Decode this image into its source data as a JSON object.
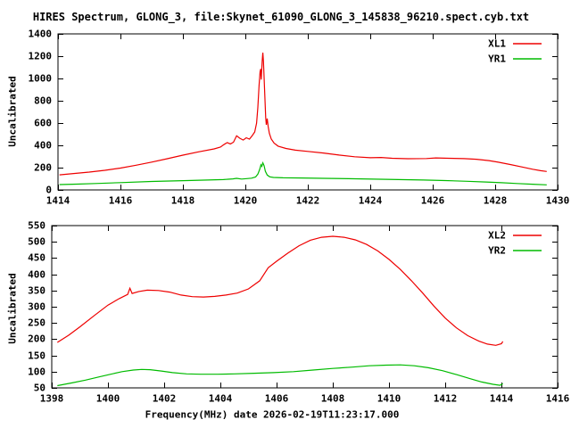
{
  "title": "HIRES Spectrum, GLONG_3, file:Skynet_61090_GLONG_3_145838_96210.spect.cyb.txt",
  "colors": {
    "background": "#ffffff",
    "axis": "#000000",
    "text": "#000000",
    "series_red": "#ee0000",
    "series_green": "#00bb00"
  },
  "chart_data": [
    {
      "type": "line",
      "title": "",
      "xlabel": "",
      "ylabel": "Uncalibrated",
      "xlim": [
        1414,
        1430
      ],
      "ylim": [
        0,
        1400
      ],
      "xticks": [
        1414,
        1416,
        1418,
        1420,
        1422,
        1424,
        1426,
        1428,
        1430
      ],
      "yticks": [
        0,
        200,
        400,
        600,
        800,
        1000,
        1200,
        1400
      ],
      "grid": false,
      "legend_position": "top-right",
      "series": [
        {
          "name": "XL1",
          "color": "#ee0000",
          "points": [
            [
              1414.05,
              135
            ],
            [
              1414.5,
              147
            ],
            [
              1415,
              160
            ],
            [
              1415.5,
              176
            ],
            [
              1416,
              196
            ],
            [
              1416.5,
              222
            ],
            [
              1417,
              250
            ],
            [
              1417.5,
              280
            ],
            [
              1418,
              312
            ],
            [
              1418.5,
              342
            ],
            [
              1419,
              368
            ],
            [
              1419.2,
              384
            ],
            [
              1419.33,
              410
            ],
            [
              1419.42,
              425
            ],
            [
              1419.52,
              413
            ],
            [
              1419.62,
              428
            ],
            [
              1419.72,
              486
            ],
            [
              1419.82,
              464
            ],
            [
              1419.93,
              447
            ],
            [
              1420.03,
              468
            ],
            [
              1420.13,
              456
            ],
            [
              1420.22,
              487
            ],
            [
              1420.3,
              520
            ],
            [
              1420.36,
              600
            ],
            [
              1420.4,
              740
            ],
            [
              1420.44,
              940
            ],
            [
              1420.47,
              1060
            ],
            [
              1420.49,
              1085
            ],
            [
              1420.51,
              990
            ],
            [
              1420.54,
              1160
            ],
            [
              1420.56,
              1232
            ],
            [
              1420.58,
              1150
            ],
            [
              1420.61,
              950
            ],
            [
              1420.63,
              790
            ],
            [
              1420.65,
              650
            ],
            [
              1420.67,
              585
            ],
            [
              1420.7,
              640
            ],
            [
              1420.73,
              568
            ],
            [
              1420.77,
              508
            ],
            [
              1420.83,
              458
            ],
            [
              1420.92,
              420
            ],
            [
              1421.05,
              393
            ],
            [
              1421.3,
              372
            ],
            [
              1421.6,
              357
            ],
            [
              1422,
              346
            ],
            [
              1422.5,
              331
            ],
            [
              1423,
              313
            ],
            [
              1423.5,
              298
            ],
            [
              1424,
              289
            ],
            [
              1424.35,
              291
            ],
            [
              1424.7,
              284
            ],
            [
              1425.2,
              280
            ],
            [
              1425.8,
              282
            ],
            [
              1426.1,
              287
            ],
            [
              1426.5,
              284
            ],
            [
              1427,
              281
            ],
            [
              1427.4,
              275
            ],
            [
              1427.8,
              263
            ],
            [
              1428.1,
              249
            ],
            [
              1428.5,
              227
            ],
            [
              1428.9,
              203
            ],
            [
              1429.2,
              186
            ],
            [
              1429.45,
              173
            ],
            [
              1429.65,
              166
            ]
          ]
        },
        {
          "name": "YR1",
          "color": "#00bb00",
          "points": [
            [
              1414.05,
              48
            ],
            [
              1414.6,
              52
            ],
            [
              1415.2,
              58
            ],
            [
              1416,
              66
            ],
            [
              1417,
              76
            ],
            [
              1418,
              83
            ],
            [
              1418.8,
              89
            ],
            [
              1419.3,
              93
            ],
            [
              1419.6,
              99
            ],
            [
              1419.72,
              104
            ],
            [
              1419.88,
              98
            ],
            [
              1420.05,
              102
            ],
            [
              1420.2,
              106
            ],
            [
              1420.33,
              116
            ],
            [
              1420.4,
              142
            ],
            [
              1420.46,
              185
            ],
            [
              1420.5,
              226
            ],
            [
              1420.53,
              212
            ],
            [
              1420.56,
              243
            ],
            [
              1420.6,
              218
            ],
            [
              1420.64,
              168
            ],
            [
              1420.7,
              134
            ],
            [
              1420.78,
              118
            ],
            [
              1420.9,
              112
            ],
            [
              1421.2,
              109
            ],
            [
              1421.8,
              107
            ],
            [
              1422.5,
              104
            ],
            [
              1423.3,
              101
            ],
            [
              1424.1,
              97
            ],
            [
              1424.9,
              93
            ],
            [
              1425.7,
              89
            ],
            [
              1426.4,
              84
            ],
            [
              1427.1,
              78
            ],
            [
              1427.7,
              71
            ],
            [
              1428.2,
              65
            ],
            [
              1428.7,
              58
            ],
            [
              1429.2,
              51
            ],
            [
              1429.65,
              46
            ]
          ]
        }
      ]
    },
    {
      "type": "line",
      "title": "",
      "xlabel": "Frequency(MHz) date 2026-02-19T11:23:17.000",
      "ylabel": "Uncalibrated",
      "xlim": [
        1398,
        1416
      ],
      "ylim": [
        50,
        550
      ],
      "xticks": [
        1398,
        1400,
        1402,
        1404,
        1406,
        1408,
        1410,
        1412,
        1414,
        1416
      ],
      "yticks": [
        50,
        100,
        150,
        200,
        250,
        300,
        350,
        400,
        450,
        500,
        550
      ],
      "grid": false,
      "legend_position": "top-right",
      "series": [
        {
          "name": "XL2",
          "color": "#ee0000",
          "points": [
            [
              1398.2,
              190
            ],
            [
              1398.6,
              212
            ],
            [
              1399,
              238
            ],
            [
              1399.5,
              272
            ],
            [
              1400,
              305
            ],
            [
              1400.4,
              325
            ],
            [
              1400.7,
              338
            ],
            [
              1400.78,
              357
            ],
            [
              1400.86,
              341
            ],
            [
              1401.1,
              347
            ],
            [
              1401.4,
              351
            ],
            [
              1401.8,
              350
            ],
            [
              1402.2,
              345
            ],
            [
              1402.6,
              336
            ],
            [
              1403,
              331
            ],
            [
              1403.4,
              330
            ],
            [
              1403.8,
              332
            ],
            [
              1404.2,
              336
            ],
            [
              1404.6,
              342
            ],
            [
              1405,
              355
            ],
            [
              1405.4,
              380
            ],
            [
              1405.7,
              420
            ],
            [
              1406,
              440
            ],
            [
              1406.4,
              465
            ],
            [
              1406.8,
              488
            ],
            [
              1407.2,
              505
            ],
            [
              1407.6,
              514
            ],
            [
              1408,
              517
            ],
            [
              1408.4,
              514
            ],
            [
              1408.8,
              506
            ],
            [
              1409.2,
              492
            ],
            [
              1409.6,
              472
            ],
            [
              1410,
              446
            ],
            [
              1410.4,
              415
            ],
            [
              1410.8,
              380
            ],
            [
              1411.2,
              342
            ],
            [
              1411.6,
              302
            ],
            [
              1412,
              265
            ],
            [
              1412.4,
              235
            ],
            [
              1412.8,
              211
            ],
            [
              1413.2,
              194
            ],
            [
              1413.5,
              185
            ],
            [
              1413.8,
              181
            ],
            [
              1414,
              186
            ],
            [
              1414.05,
              193
            ]
          ]
        },
        {
          "name": "YR2",
          "color": "#00bb00",
          "points": [
            [
              1398.2,
              57
            ],
            [
              1398.7,
              65
            ],
            [
              1399.2,
              74
            ],
            [
              1399.7,
              84
            ],
            [
              1400.1,
              92
            ],
            [
              1400.5,
              100
            ],
            [
              1400.9,
              105
            ],
            [
              1401.2,
              107
            ],
            [
              1401.5,
              106
            ],
            [
              1401.9,
              102
            ],
            [
              1402.3,
              97
            ],
            [
              1402.8,
              93
            ],
            [
              1403.3,
              92
            ],
            [
              1403.9,
              92
            ],
            [
              1404.5,
              93
            ],
            [
              1405.2,
              95
            ],
            [
              1405.9,
              97
            ],
            [
              1406.6,
              100
            ],
            [
              1407.3,
              105
            ],
            [
              1408,
              110
            ],
            [
              1408.7,
              114
            ],
            [
              1409.3,
              118
            ],
            [
              1409.9,
              120
            ],
            [
              1410.4,
              121
            ],
            [
              1410.9,
              118
            ],
            [
              1411.4,
              112
            ],
            [
              1411.9,
              103
            ],
            [
              1412.4,
              91
            ],
            [
              1412.9,
              78
            ],
            [
              1413.3,
              68
            ],
            [
              1413.7,
              61
            ],
            [
              1413.95,
              58
            ],
            [
              1414.05,
              63
            ]
          ]
        }
      ]
    }
  ]
}
